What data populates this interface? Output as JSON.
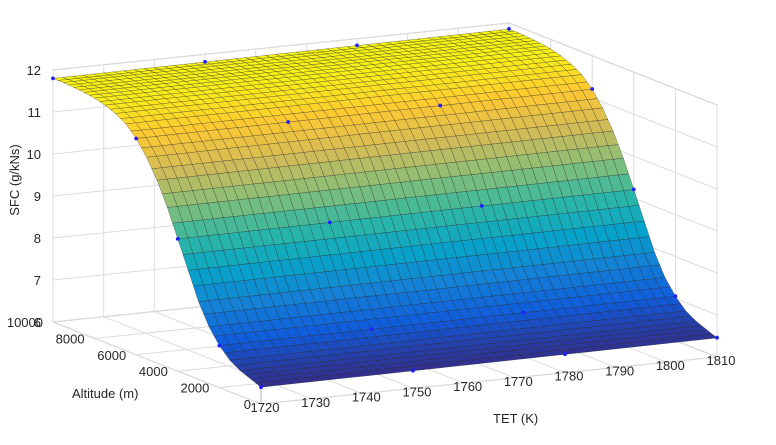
{
  "chart_data": {
    "type": "surface",
    "title": "",
    "xlabel": "TET (K)",
    "ylabel": "Altitude (m)",
    "zlabel": "SFC (g/kNs)",
    "xlim": [
      1720,
      1810
    ],
    "ylim": [
      0,
      10000
    ],
    "zlim": [
      6,
      12
    ],
    "xticks": [
      "1720",
      "1730",
      "1740",
      "1750",
      "1760",
      "1770",
      "1780",
      "1790",
      "1800",
      "1810"
    ],
    "yticks": [
      "0",
      "2000",
      "4000",
      "6000",
      "8000",
      "10000"
    ],
    "zticks": [
      "6",
      "7",
      "8",
      "9",
      "10",
      "11",
      "12"
    ],
    "grid": true,
    "colormap": "parula",
    "colormap_stops": [
      "#352a87",
      "#0f5cdd",
      "#1481d6",
      "#06a4ca",
      "#2eb7a4",
      "#87bf77",
      "#d1bb59",
      "#fec832",
      "#f9fb0e"
    ],
    "sfc_profile": {
      "altitude": [
        0,
        500,
        1000,
        1500,
        2000,
        2500,
        3000,
        3500,
        4000,
        4500,
        5000,
        5500,
        6000,
        6500,
        7000,
        7500,
        8000,
        8500,
        9000,
        9500,
        10000
      ],
      "sfc": [
        6.4,
        6.5,
        6.6,
        6.75,
        7.0,
        7.35,
        7.85,
        8.5,
        9.15,
        9.8,
        10.35,
        10.8,
        11.15,
        11.4,
        11.55,
        11.65,
        11.72,
        11.76,
        11.78,
        11.8,
        11.8
      ]
    },
    "sfc_tet_slope_per_k": 0.0006,
    "sample_points": [
      {
        "x": 1720,
        "y": 10000,
        "z": 11.8
      },
      {
        "x": 1750,
        "y": 10000,
        "z": 11.82
      },
      {
        "x": 1780,
        "y": 10000,
        "z": 11.84
      },
      {
        "x": 1810,
        "y": 10000,
        "z": 11.86
      },
      {
        "x": 1720,
        "y": 6000,
        "z": 11.15
      },
      {
        "x": 1750,
        "y": 6000,
        "z": 11.17
      },
      {
        "x": 1780,
        "y": 6000,
        "z": 11.19
      },
      {
        "x": 1810,
        "y": 6000,
        "z": 11.21
      },
      {
        "x": 1720,
        "y": 4000,
        "z": 9.15
      },
      {
        "x": 1750,
        "y": 4000,
        "z": 9.17
      },
      {
        "x": 1780,
        "y": 4000,
        "z": 9.19
      },
      {
        "x": 1810,
        "y": 4000,
        "z": 9.21
      },
      {
        "x": 1720,
        "y": 2000,
        "z": 7.0
      },
      {
        "x": 1750,
        "y": 2000,
        "z": 7.02
      },
      {
        "x": 1780,
        "y": 2000,
        "z": 7.04
      },
      {
        "x": 1810,
        "y": 2000,
        "z": 7.06
      },
      {
        "x": 1720,
        "y": 0,
        "z": 6.4
      },
      {
        "x": 1750,
        "y": 0,
        "z": 6.42
      },
      {
        "x": 1780,
        "y": 0,
        "z": 6.44
      },
      {
        "x": 1810,
        "y": 0,
        "z": 6.46
      }
    ]
  }
}
